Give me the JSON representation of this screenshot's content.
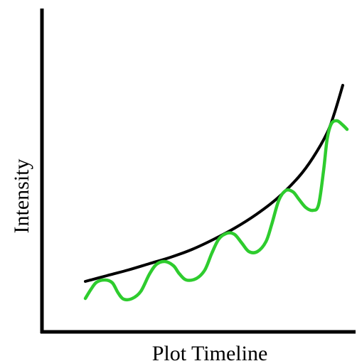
{
  "chart_data": {
    "type": "line",
    "title": "",
    "xlabel": "Plot Timeline",
    "ylabel": "Intensity",
    "grid": false,
    "legend": "none",
    "axis_color": "#000000",
    "series": [
      {
        "color": "#000000",
        "points": [
          [
            120,
            396
          ],
          [
            150,
            388
          ],
          [
            180,
            380
          ],
          [
            210,
            371
          ],
          [
            240,
            362
          ],
          [
            270,
            351
          ],
          [
            300,
            337
          ],
          [
            330,
            321
          ],
          [
            360,
            302
          ],
          [
            390,
            279
          ],
          [
            420,
            249
          ],
          [
            440,
            222
          ],
          [
            460,
            187
          ],
          [
            470,
            160
          ],
          [
            482,
            120
          ]
        ]
      },
      {
        "color": "#2ecc2e",
        "points": [
          [
            120,
            420
          ],
          [
            128,
            407
          ],
          [
            136,
            397
          ],
          [
            148,
            394
          ],
          [
            158,
            398
          ],
          [
            166,
            412
          ],
          [
            174,
            421
          ],
          [
            186,
            420
          ],
          [
            198,
            410
          ],
          [
            210,
            386
          ],
          [
            220,
            372
          ],
          [
            232,
            368
          ],
          [
            244,
            374
          ],
          [
            252,
            385
          ],
          [
            262,
            394
          ],
          [
            276,
            392
          ],
          [
            288,
            380
          ],
          [
            298,
            356
          ],
          [
            308,
            336
          ],
          [
            320,
            328
          ],
          [
            330,
            330
          ],
          [
            340,
            342
          ],
          [
            350,
            354
          ],
          [
            362,
            354
          ],
          [
            374,
            340
          ],
          [
            382,
            316
          ],
          [
            392,
            282
          ],
          [
            402,
            268
          ],
          [
            412,
            270
          ],
          [
            420,
            280
          ],
          [
            430,
            292
          ],
          [
            440,
            296
          ],
          [
            448,
            288
          ],
          [
            455,
            240
          ],
          [
            460,
            196
          ],
          [
            466,
            174
          ],
          [
            474,
            170
          ],
          [
            482,
            176
          ],
          [
            488,
            182
          ]
        ]
      }
    ]
  }
}
